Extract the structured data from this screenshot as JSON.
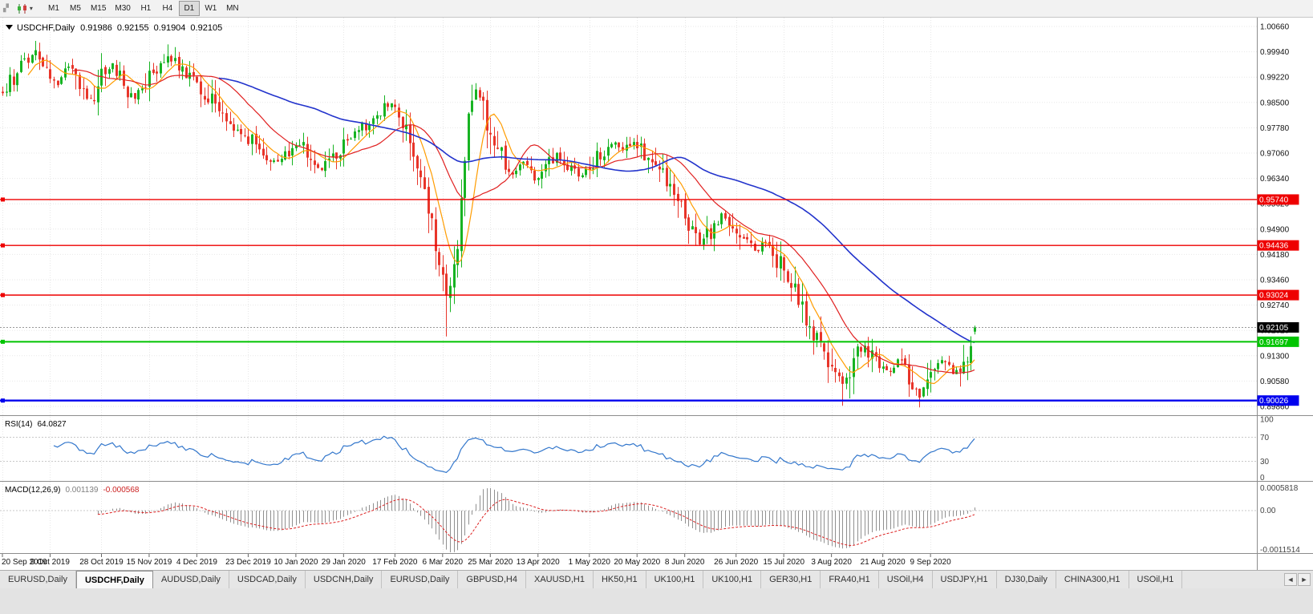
{
  "toolbar": {
    "timeframes": [
      "M1",
      "M5",
      "M15",
      "M30",
      "H1",
      "H4",
      "D1",
      "W1",
      "MN"
    ],
    "active_timeframe": "D1",
    "caret": "▾"
  },
  "chart": {
    "symbol_period": "USDCHF,Daily",
    "ohlc": {
      "open": "0.91986",
      "high": "0.92155",
      "low": "0.91904",
      "close": "0.92105"
    },
    "price_axis_labels": [
      "1.00660",
      "0.99940",
      "0.99220",
      "0.98500",
      "0.97780",
      "0.97060",
      "0.96340",
      "0.95620",
      "0.94900",
      "0.94180",
      "0.93460",
      "0.92740",
      "0.92020",
      "0.91300",
      "0.90580",
      "0.89860"
    ],
    "date_axis_labels": [
      "20 Sep 2019",
      "9 Oct 2019",
      "28 Oct 2019",
      "15 Nov 2019",
      "4 Dec 2019",
      "23 Dec 2019",
      "10 Jan 2020",
      "29 Jan 2020",
      "17 Feb 2020",
      "6 Mar 2020",
      "25 Mar 2020",
      "13 Apr 2020",
      "1 May 2020",
      "20 May 2020",
      "8 Jun 2020",
      "26 Jun 2020",
      "15 Jul 2020",
      "3 Aug 2020",
      "21 Aug 2020",
      "9 Sep 2020"
    ],
    "levels": [
      {
        "value": "0.95740",
        "color": "#ee0000",
        "width": 1.4
      },
      {
        "value": "0.94436",
        "color": "#ee0000",
        "width": 1.4
      },
      {
        "value": "0.93024",
        "color": "#ee0000",
        "width": 1.4
      },
      {
        "value": "0.91697",
        "color": "#00c400",
        "width": 2
      },
      {
        "value": "0.90026",
        "color": "#0000ee",
        "width": 2.4
      }
    ],
    "current_price": {
      "value": "0.92105",
      "color": "#000000"
    }
  },
  "indicators": {
    "rsi": {
      "label": "RSI(14)",
      "value": "64.0827",
      "scale": [
        "100",
        "70",
        "30",
        "0"
      ],
      "levels": [
        70,
        30
      ],
      "color": "#3377cc"
    },
    "macd": {
      "label": "MACD(12,26,9)",
      "value_main": "0.001139",
      "value_signal": "-0.000568",
      "scale_max": "0.0005818",
      "scale_zero": "0.00",
      "scale_min": "-0.0011514",
      "histogram_color": "#909090",
      "signal_color": "#dd2222"
    }
  },
  "tabs": {
    "items": [
      "EURUSD,Daily",
      "USDCHF,Daily",
      "AUDUSD,Daily",
      "USDCAD,Daily",
      "USDCNH,Daily",
      "EURUSD,Daily",
      "GBPUSD,H4",
      "XAUUSD,H1",
      "HK50,H1",
      "UK100,H1",
      "UK100,H1",
      "GER30,H1",
      "FRA40,H1",
      "USOil,H4",
      "USDJPY,H1",
      "DJ30,Daily",
      "CHINA300,H1",
      "USOil,H1"
    ],
    "active_index": 1,
    "scroll_left": "◄",
    "scroll_right": "►"
  },
  "chart_data": {
    "type": "candlestick",
    "symbol": "USDCHF",
    "period": "Daily",
    "candle_count": 266,
    "price_top": 1.0066,
    "price_bottom": 0.8986,
    "up_color": "#17b322",
    "down_color": "#e8352a",
    "anchors": [
      [
        0,
        0.988
      ],
      [
        3,
        0.992
      ],
      [
        6,
        0.996
      ],
      [
        9,
        0.999
      ],
      [
        12,
        0.9945
      ],
      [
        15,
        0.9905
      ],
      [
        18,
        0.995
      ],
      [
        21,
        0.9885
      ],
      [
        24,
        0.9855
      ],
      [
        27,
        0.9925
      ],
      [
        30,
        0.995
      ],
      [
        33,
        0.9895
      ],
      [
        36,
        0.9865
      ],
      [
        39,
        0.9905
      ],
      [
        42,
        0.995
      ],
      [
        45,
        0.9985
      ],
      [
        48,
        0.996
      ],
      [
        51,
        0.9925
      ],
      [
        54,
        0.989
      ],
      [
        57,
        0.9855
      ],
      [
        60,
        0.9805
      ],
      [
        63,
        0.9775
      ],
      [
        66,
        0.9765
      ],
      [
        69,
        0.9725
      ],
      [
        72,
        0.9695
      ],
      [
        75,
        0.9675
      ],
      [
        78,
        0.9715
      ],
      [
        81,
        0.9735
      ],
      [
        84,
        0.9685
      ],
      [
        87,
        0.9655
      ],
      [
        90,
        0.9695
      ],
      [
        93,
        0.9725
      ],
      [
        96,
        0.9765
      ],
      [
        99,
        0.9785
      ],
      [
        102,
        0.9815
      ],
      [
        105,
        0.9845
      ],
      [
        108,
        0.9825
      ],
      [
        111,
        0.9755
      ],
      [
        114,
        0.9625
      ],
      [
        117,
        0.9505
      ],
      [
        119,
        0.9405
      ],
      [
        121,
        0.931
      ],
      [
        123,
        0.936
      ],
      [
        125,
        0.9555
      ],
      [
        127,
        0.98
      ],
      [
        129,
        0.988
      ],
      [
        131,
        0.9825
      ],
      [
        133,
        0.9765
      ],
      [
        136,
        0.9705
      ],
      [
        139,
        0.9645
      ],
      [
        142,
        0.9685
      ],
      [
        145,
        0.9635
      ],
      [
        148,
        0.9665
      ],
      [
        151,
        0.9705
      ],
      [
        154,
        0.9675
      ],
      [
        157,
        0.9645
      ],
      [
        160,
        0.9665
      ],
      [
        163,
        0.9705
      ],
      [
        166,
        0.9735
      ],
      [
        169,
        0.9715
      ],
      [
        172,
        0.9745
      ],
      [
        175,
        0.9705
      ],
      [
        178,
        0.9665
      ],
      [
        181,
        0.9625
      ],
      [
        184,
        0.9565
      ],
      [
        187,
        0.9515
      ],
      [
        190,
        0.9445
      ],
      [
        193,
        0.9485
      ],
      [
        196,
        0.9535
      ],
      [
        199,
        0.9505
      ],
      [
        202,
        0.9465
      ],
      [
        205,
        0.9425
      ],
      [
        208,
        0.9455
      ],
      [
        211,
        0.9405
      ],
      [
        214,
        0.9365
      ],
      [
        217,
        0.9285
      ],
      [
        220,
        0.9215
      ],
      [
        223,
        0.9155
      ],
      [
        226,
        0.9105
      ],
      [
        229,
        0.9045
      ],
      [
        232,
        0.9125
      ],
      [
        235,
        0.9165
      ],
      [
        238,
        0.9105
      ],
      [
        241,
        0.9085
      ],
      [
        244,
        0.9115
      ],
      [
        247,
        0.9065
      ],
      [
        250,
        0.9015
      ],
      [
        253,
        0.9095
      ],
      [
        256,
        0.9115
      ],
      [
        259,
        0.9085
      ],
      [
        262,
        0.9105
      ],
      [
        264,
        0.918
      ],
      [
        265,
        0.92105
      ]
    ],
    "wicks": {
      "9": {
        "high": 1.0025
      },
      "45": {
        "high": 1.0015
      },
      "121": {
        "low": 0.9185
      },
      "129": {
        "high": 0.9905
      },
      "229": {
        "low": 0.8988
      },
      "250": {
        "low": 0.8983
      }
    },
    "moving_averages": [
      {
        "period": 8,
        "color": "#ff9c00",
        "width": 1.2
      },
      {
        "period": 20,
        "color": "#e02020",
        "width": 1.2
      },
      {
        "period": 60,
        "color": "#2233cc",
        "width": 1.6
      }
    ],
    "rsi_period": 14,
    "macd_periods": [
      12,
      26,
      9
    ]
  }
}
